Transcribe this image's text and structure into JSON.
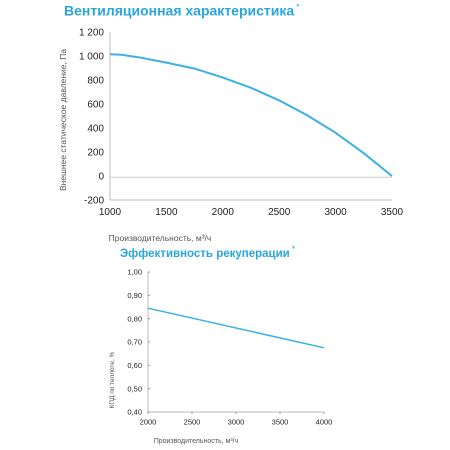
{
  "chart_data": [
    {
      "type": "line",
      "title": "Вентиляционная характеристика",
      "title_mark": "*",
      "xlabel": "Производительность, м³/ч",
      "ylabel": "Внешнее статическое давление, Па",
      "xlim": [
        1000,
        3500
      ],
      "ylim": [
        -200,
        1200
      ],
      "x_ticks": [
        "1000",
        "1500",
        "2000",
        "2500",
        "3000",
        "3500"
      ],
      "y_ticks": [
        "1 200",
        "1 000",
        "800",
        "600",
        "400",
        "200",
        "0",
        "-200"
      ],
      "grid": false,
      "color": "#3bb0e3",
      "series": [
        {
          "x": [
            1000,
            1100,
            1250,
            1500,
            1750,
            2000,
            2250,
            2500,
            2750,
            3000,
            3250,
            3500
          ],
          "values": [
            1015,
            1010,
            990,
            945,
            895,
            820,
            735,
            630,
            505,
            360,
            190,
            0
          ]
        }
      ]
    },
    {
      "type": "line",
      "title": "Эффективность рекуперации",
      "title_mark": "*",
      "xlabel": "Производительность, м³/ч",
      "ylabel": "КПД по теплоте, %",
      "xlim": [
        2000,
        4000
      ],
      "ylim": [
        0.4,
        1.0
      ],
      "x_ticks": [
        "2000",
        "2500",
        "3000",
        "3500",
        "4000"
      ],
      "y_ticks": [
        "1,00",
        "0,90",
        "0,80",
        "0,70",
        "0,60",
        "0,50",
        "0,40"
      ],
      "grid": false,
      "color": "#3bb0e3",
      "series": [
        {
          "x": [
            2000,
            4000
          ],
          "values": [
            0.845,
            0.675
          ]
        }
      ]
    }
  ]
}
